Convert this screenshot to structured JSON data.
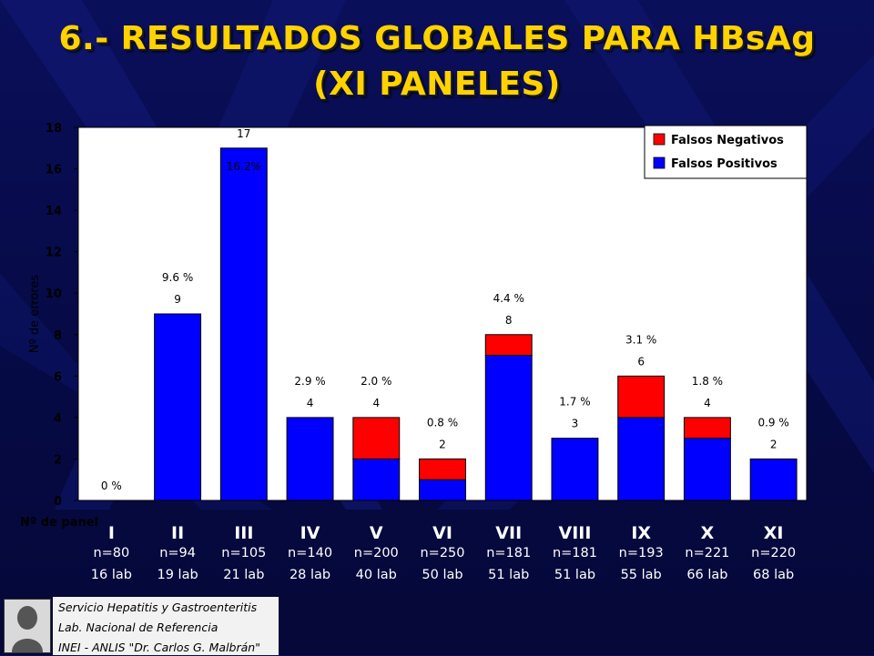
{
  "title_line1": "6.- RESULTADOS GLOBALES PARA HBsAg",
  "title_line2": "(XI PANELES)",
  "chart_data": {
    "type": "bar",
    "stacked": true,
    "ylabel": "Nº de errores",
    "xlabel": "Nº de panel",
    "ylim": [
      0,
      18
    ],
    "yticks": [
      "0",
      "2",
      "4",
      "6",
      "8",
      "10",
      "12",
      "14",
      "16",
      "18"
    ],
    "categories": [
      "I",
      "II",
      "III",
      "IV",
      "V",
      "VI",
      "VII",
      "VIII",
      "IX",
      "X",
      "XI"
    ],
    "series": [
      {
        "name": "Falsos Positivos",
        "color": "#0000ff",
        "values": [
          0,
          9,
          17,
          4,
          2,
          1,
          7,
          3,
          4,
          3,
          2
        ]
      },
      {
        "name": "Falsos Negativos",
        "color": "#ff0000",
        "values": [
          0,
          0,
          0,
          0,
          2,
          1,
          1,
          0,
          2,
          1,
          0
        ]
      }
    ],
    "total_labels": [
      "",
      "9",
      "17",
      "4",
      "4",
      "2",
      "8",
      "3",
      "6",
      "4",
      "2"
    ],
    "percent_labels": [
      "0 %",
      "9.6 %",
      "16.2%",
      "2.9 %",
      "2.0 %",
      "0.8 %",
      "4.4 %",
      "1.7 %",
      "3.1 %",
      "1.8 %",
      "0.9 %"
    ],
    "n_labels": [
      "n=80",
      "n=94",
      "n=105",
      "n=140",
      "n=200",
      "n=250",
      "n=181",
      "n=181",
      "n=193",
      "n=221",
      "n=220"
    ],
    "lab_labels": [
      "16 lab",
      "19 lab",
      "21 lab",
      "28 lab",
      "40 lab",
      "50 lab",
      "51 lab",
      "51 lab",
      "55 lab",
      "66 lab",
      "68 lab"
    ],
    "legend_position": "top-right",
    "plot_background": "#ffffff"
  },
  "footer": {
    "line1": "Servicio Hepatitis y Gastroenteritis",
    "line2": "Lab. Nacional de Referencia",
    "line3": "INEI - ANLIS \"Dr. Carlos G. Malbrán\""
  }
}
